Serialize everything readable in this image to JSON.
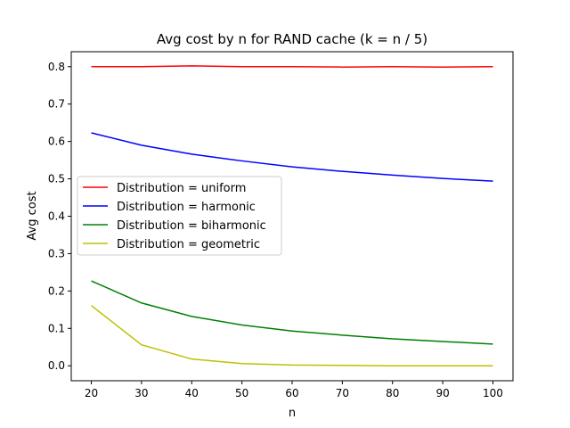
{
  "chart_data": {
    "type": "line",
    "title": "Avg cost by n for RAND cache (k = n / 5)",
    "xlabel": "n",
    "ylabel": "Avg cost",
    "x": [
      20,
      30,
      40,
      50,
      60,
      70,
      80,
      90,
      100
    ],
    "xlim": [
      16,
      104
    ],
    "ylim": [
      -0.04,
      0.84
    ],
    "xticks": [
      "20",
      "30",
      "40",
      "50",
      "60",
      "70",
      "80",
      "90",
      "100"
    ],
    "xtick_values": [
      20,
      30,
      40,
      50,
      60,
      70,
      80,
      90,
      100
    ],
    "yticks": [
      "0.0",
      "0.1",
      "0.2",
      "0.3",
      "0.4",
      "0.5",
      "0.6",
      "0.7",
      "0.8"
    ],
    "ytick_values": [
      0.0,
      0.1,
      0.2,
      0.3,
      0.4,
      0.5,
      0.6,
      0.7,
      0.8
    ],
    "grid": false,
    "legend_position": "center-left",
    "series": [
      {
        "name": "Distribution = uniform",
        "color": "#ff0000",
        "values": [
          0.8,
          0.8,
          0.802,
          0.8,
          0.8,
          0.799,
          0.8,
          0.799,
          0.8
        ]
      },
      {
        "name": "Distribution = harmonic",
        "color": "#0000ff",
        "values": [
          0.623,
          0.59,
          0.566,
          0.548,
          0.532,
          0.52,
          0.51,
          0.501,
          0.494
        ]
      },
      {
        "name": "Distribution = biharmonic",
        "color": "#008000",
        "values": [
          0.227,
          0.168,
          0.132,
          0.109,
          0.093,
          0.082,
          0.072,
          0.065,
          0.058
        ]
      },
      {
        "name": "Distribution = geometric",
        "color": "#bfbf00",
        "values": [
          0.161,
          0.056,
          0.018,
          0.006,
          0.002,
          0.001,
          0.0,
          0.0,
          0.0
        ]
      }
    ]
  }
}
